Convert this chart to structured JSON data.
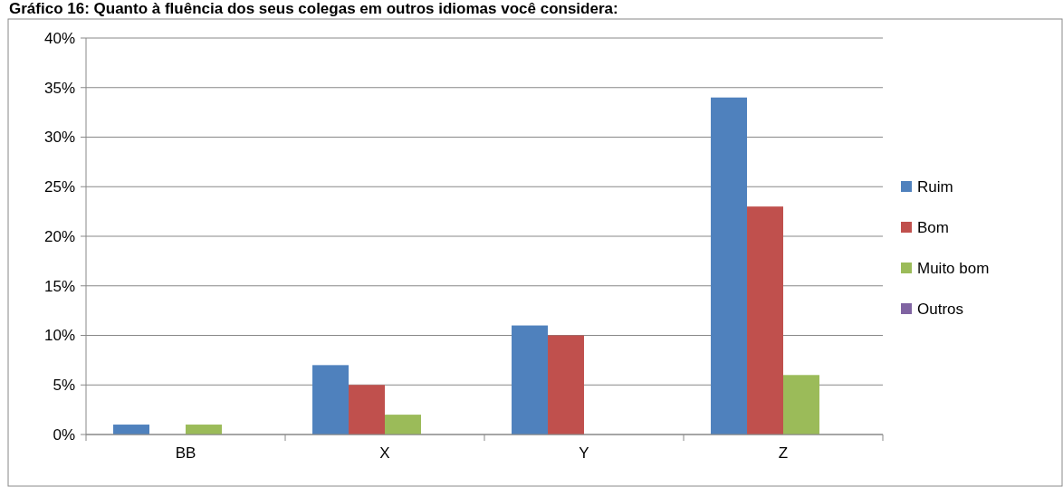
{
  "chart_data": {
    "type": "bar",
    "title": "Gráfico 16: Quanto à fluência dos seus colegas em outros idiomas você considera:",
    "categories": [
      "BB",
      "X",
      "Y",
      "Z"
    ],
    "series": [
      {
        "name": "Ruim",
        "color": "#4f81bd",
        "values": [
          1,
          7,
          11,
          34
        ]
      },
      {
        "name": "Bom",
        "color": "#c0504d",
        "values": [
          0,
          5,
          10,
          23
        ]
      },
      {
        "name": "Muito bom",
        "color": "#9bbb59",
        "values": [
          1,
          2,
          0,
          6
        ]
      },
      {
        "name": "Outros",
        "color": "#8064a2",
        "values": [
          0,
          0,
          0,
          0
        ]
      }
    ],
    "ylim": [
      0,
      40
    ],
    "yticks": [
      {
        "value": 0,
        "label": "0%"
      },
      {
        "value": 5,
        "label": "5%"
      },
      {
        "value": 10,
        "label": "10%"
      },
      {
        "value": 15,
        "label": "15%"
      },
      {
        "value": 20,
        "label": "20%"
      },
      {
        "value": 25,
        "label": "25%"
      },
      {
        "value": 30,
        "label": "30%"
      },
      {
        "value": 35,
        "label": "35%"
      },
      {
        "value": 40,
        "label": "40%"
      }
    ],
    "grid": "y",
    "legend": "right"
  }
}
